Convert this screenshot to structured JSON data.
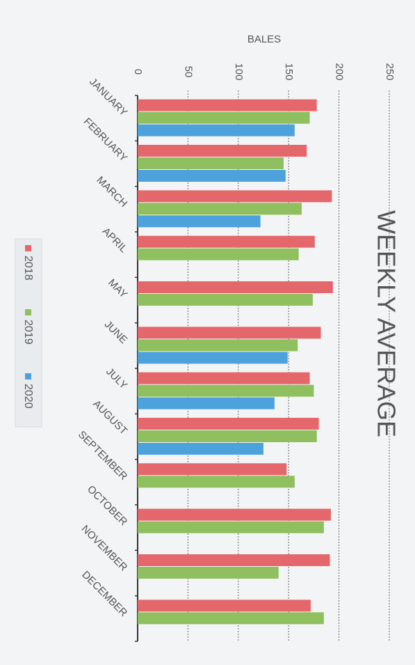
{
  "chart_data": {
    "type": "bar",
    "orientation": "horizontal",
    "title": "WEEKLY AVERAGE",
    "x_label": "BALES",
    "categories": [
      "JANUARY",
      "FEBRUARY",
      "MARCH",
      "APRIL",
      "MAY",
      "JUNE",
      "JULY",
      "AUGUST",
      "SEPTEMBER",
      "OCTOBER",
      "NOVEMBER",
      "DECEMBER"
    ],
    "series": [
      {
        "name": "2018",
        "color": "#e4676b",
        "values": [
          178,
          168,
          193,
          176,
          194,
          182,
          171,
          180,
          148,
          192,
          191,
          172
        ]
      },
      {
        "name": "2019",
        "color": "#8fbf5f",
        "values": [
          171,
          145,
          163,
          160,
          174,
          159,
          175,
          178,
          156,
          185,
          140,
          185
        ]
      },
      {
        "name": "2020",
        "color": "#4da2dc",
        "values": [
          156,
          147,
          122,
          null,
          null,
          149,
          136,
          125,
          null,
          null,
          null,
          null
        ]
      }
    ],
    "xlim": [
      0,
      250
    ],
    "xticks": [
      0,
      50,
      100,
      150,
      200,
      250
    ],
    "grid": true,
    "legend": "left"
  }
}
